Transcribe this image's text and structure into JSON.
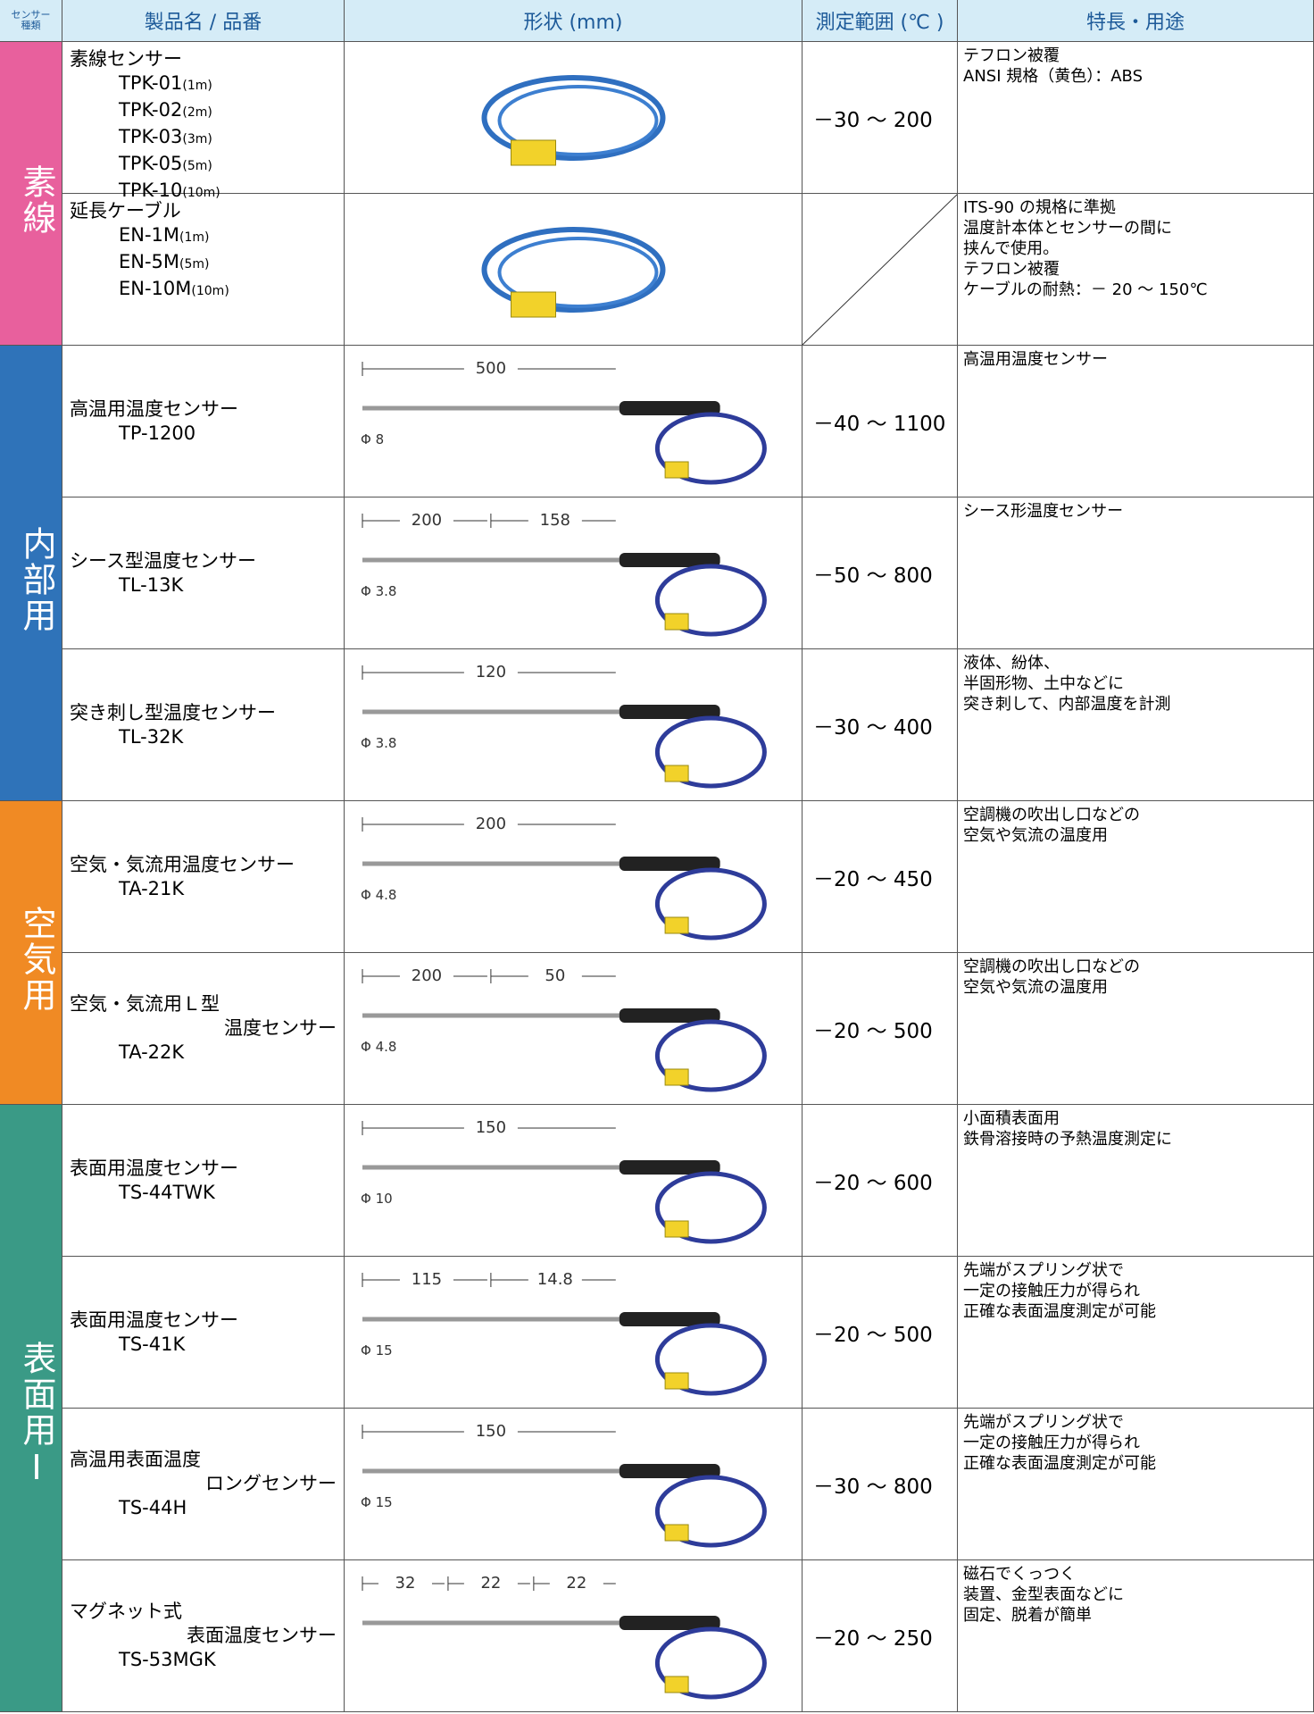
{
  "header": {
    "category": [
      "センサー",
      "種類"
    ],
    "product": "製品名 / 品番",
    "shape": "形状 (mm)",
    "range": "測定範囲 (℃ )",
    "features": "特長・用途"
  },
  "categories": [
    {
      "label": "素線",
      "color": "#e8609d",
      "rows": [
        {
          "name": [
            {
              "text": "素線センサー"
            },
            {
              "text": "TPK-01",
              "small": "(1m)"
            },
            {
              "text": "TPK-02",
              "small": "(2m)"
            },
            {
              "text": "TPK-03",
              "small": "(3m)"
            },
            {
              "text": "TPK-05",
              "small": "(5m)"
            },
            {
              "text": "TPK-10",
              "small": "(10m)"
            }
          ],
          "dims": [],
          "range": "－30 ～ 200",
          "features": [
            "テフロン被覆",
            "ANSI 規格（黄色）：ABS"
          ]
        },
        {
          "name": [
            {
              "text": "延長ケーブル"
            },
            {
              "text": "EN-1M",
              "small": "(1m)"
            },
            {
              "text": "EN-5M",
              "small": "(5m)"
            },
            {
              "text": "EN-10M",
              "small": "(10m)"
            }
          ],
          "dims": [],
          "features": [
            "ITS-90 の規格に準拠",
            "温度計本体とセンサーの間に",
            "挟んで使用。",
            "テフロン被覆",
            "ケーブルの耐熱：－ 20 ～ 150℃"
          ]
        }
      ]
    },
    {
      "label": "内部用",
      "color": "#2f73b9",
      "rows": [
        {
          "name": [
            {
              "text": "高温用温度センサー"
            },
            {
              "text": "TP-1200"
            }
          ],
          "dims": [
            "500",
            "Φ 8"
          ],
          "range": "－40 ～ 1100",
          "features": [
            "高温用温度センサー"
          ]
        },
        {
          "name": [
            {
              "text": "シース型温度センサー"
            },
            {
              "text": "TL-13K"
            }
          ],
          "dims": [
            "200",
            "158",
            "Φ 3.8"
          ],
          "range": "－50 ～ 800",
          "features": [
            "シース形温度センサー"
          ]
        },
        {
          "name": [
            {
              "text": "突き刺し型温度センサー"
            },
            {
              "text": "TL-32K"
            }
          ],
          "dims": [
            "120",
            "Φ 3.8"
          ],
          "range": "－30 ～ 400",
          "features": [
            "液体、紛体、",
            "半固形物、土中などに",
            "突き刺して、内部温度を計測"
          ]
        }
      ]
    },
    {
      "label": "空気用",
      "color": "#f08a24",
      "rows": [
        {
          "name": [
            {
              "text": "空気・気流用温度センサー"
            },
            {
              "text": "TA-21K"
            }
          ],
          "dims": [
            "200",
            "Φ 4.8"
          ],
          "range": "－20 ～ 450",
          "features": [
            "空調機の吹出し口などの",
            "空気や気流の温度用"
          ]
        },
        {
          "name": [
            {
              "text": "空気・気流用Ｌ型"
            },
            {
              "text": "温度センサー"
            },
            {
              "text": "TA-22K"
            }
          ],
          "dims": [
            "200",
            "50",
            "Φ 4.8"
          ],
          "range": "－20 ～ 500",
          "features": [
            "空調機の吹出し口などの",
            "空気や気流の温度用"
          ]
        }
      ]
    },
    {
      "label": "表面用Ⅰ",
      "color": "#3a9a86",
      "rows": [
        {
          "name": [
            {
              "text": "表面用温度センサー"
            },
            {
              "text": "TS-44TWK"
            }
          ],
          "dims": [
            "150",
            "Φ 10"
          ],
          "range": "－20 ～ 600",
          "features": [
            "小面積表面用",
            "鉄骨溶接時の予熱温度測定に"
          ]
        },
        {
          "name": [
            {
              "text": "表面用温度センサー"
            },
            {
              "text": "TS-41K"
            }
          ],
          "dims": [
            "115",
            "14.8",
            "Φ 15"
          ],
          "range": "－20 ～ 500",
          "features": [
            "先端がスプリング状で",
            "一定の接触圧力が得られ",
            "正確な表面温度測定が可能"
          ]
        },
        {
          "name": [
            {
              "text": "高温用表面温度"
            },
            {
              "text": "ロングセンサー"
            },
            {
              "text": "TS-44H"
            }
          ],
          "dims": [
            "150",
            "Φ 15"
          ],
          "range": "－30 ～ 800",
          "features": [
            "先端がスプリング状で",
            "一定の接触圧力が得られ",
            "正確な表面温度測定が可能"
          ]
        },
        {
          "name": [
            {
              "text": "マグネット式"
            },
            {
              "text": "表面温度センサー"
            },
            {
              "text": "TS-53MGK"
            }
          ],
          "dims": [
            "32",
            "22",
            "22"
          ],
          "range": "－20 ～ 250",
          "features": [
            "磁石でくっつく",
            "装置、金型表面などに",
            "固定、脱着が簡単"
          ]
        }
      ]
    }
  ]
}
